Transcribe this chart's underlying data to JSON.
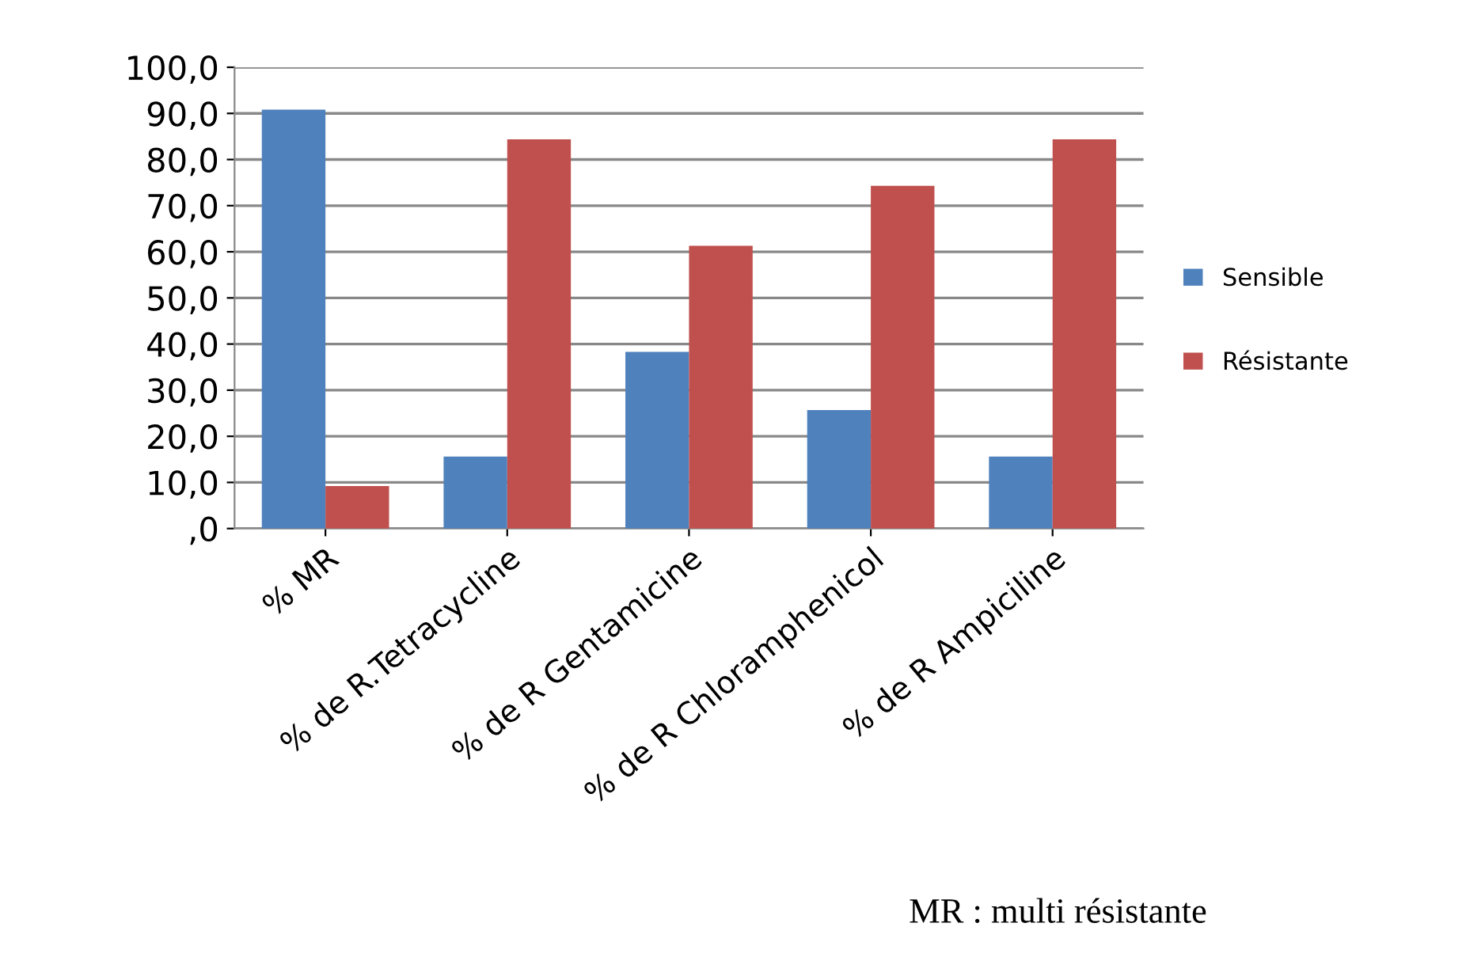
{
  "chart_data": {
    "type": "bar",
    "categories": [
      "% MR",
      "% de R.Tetracycline",
      "% de R Gentamicine",
      "% de R Chloramphenicol",
      "% de R Ampiciline"
    ],
    "series": [
      {
        "name": "Sensible",
        "color": "#4f81bd",
        "values": [
          90.8,
          15.6,
          38.3,
          25.7,
          15.6
        ]
      },
      {
        "name": "Résistante",
        "color": "#c0504d",
        "values": [
          9.2,
          84.4,
          61.3,
          74.3,
          84.4
        ]
      }
    ],
    "ylim": [
      0,
      100
    ],
    "yticks": [
      {
        "value": 0,
        "label": ",0"
      },
      {
        "value": 10,
        "label": "10,0"
      },
      {
        "value": 20,
        "label": "20,0"
      },
      {
        "value": 30,
        "label": "30,0"
      },
      {
        "value": 40,
        "label": "40,0"
      },
      {
        "value": 50,
        "label": "50,0"
      },
      {
        "value": 60,
        "label": "60,0"
      },
      {
        "value": 70,
        "label": "70,0"
      },
      {
        "value": 80,
        "label": "80,0"
      },
      {
        "value": 90,
        "label": "90,0"
      },
      {
        "value": 100,
        "label": "100,0"
      }
    ],
    "grid": "y",
    "legend": "right",
    "annotations": [
      "MR : multi résistante"
    ]
  }
}
